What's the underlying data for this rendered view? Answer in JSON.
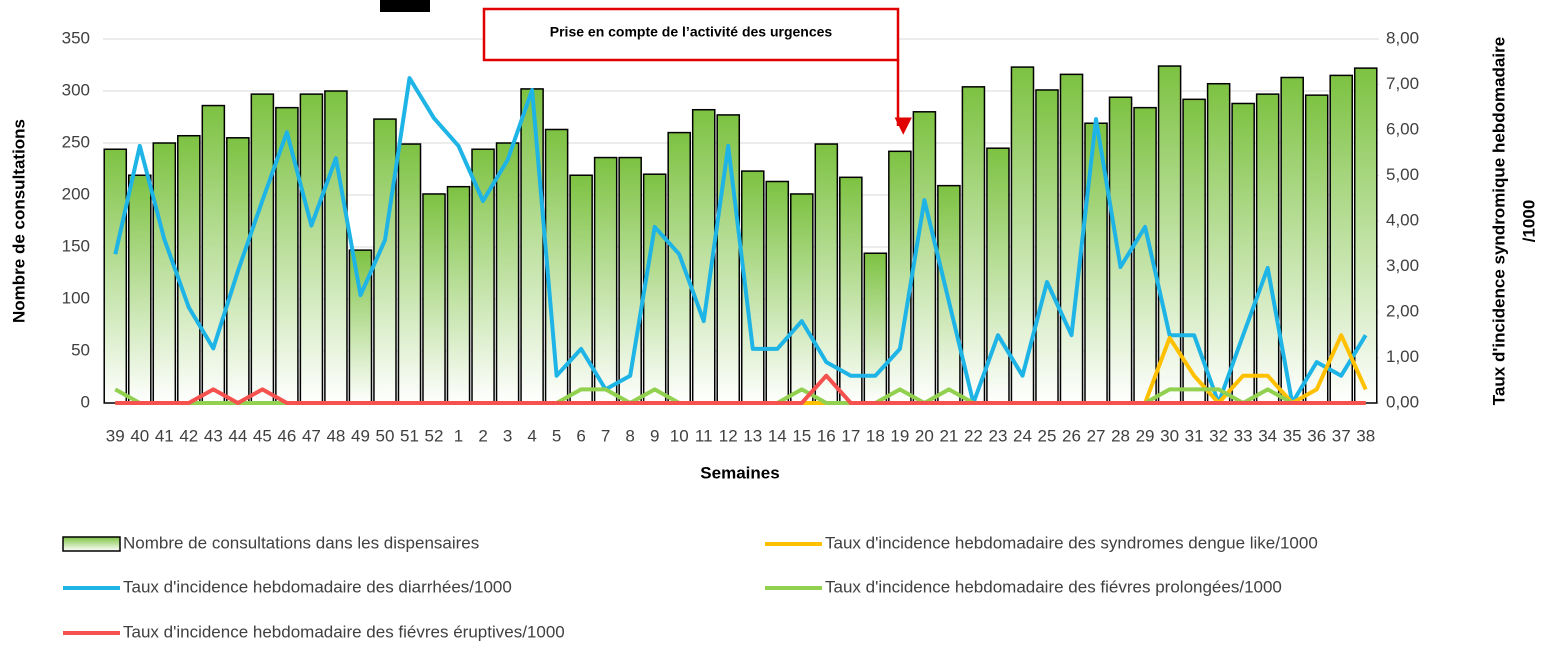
{
  "chart_data": {
    "type": "bar",
    "annotation": "Prise en compte de l’activité des urgences",
    "xlabel": "Semaines",
    "ylabel": "Nombre de consultations",
    "y2label": [
      "Taux d'incidence syndromique hebdomadaire",
      "/1000"
    ],
    "categories": [
      "39",
      "40",
      "41",
      "42",
      "43",
      "44",
      "45",
      "46",
      "47",
      "48",
      "49",
      "50",
      "51",
      "52",
      "1",
      "2",
      "3",
      "4",
      "5",
      "6",
      "7",
      "8",
      "9",
      "10",
      "11",
      "12",
      "13",
      "14",
      "15",
      "16",
      "17",
      "18",
      "19",
      "20",
      "21",
      "22",
      "23",
      "24",
      "25",
      "26",
      "27",
      "28",
      "29",
      "30",
      "31",
      "32",
      "33",
      "34",
      "35",
      "36",
      "37",
      "38"
    ],
    "ylim": [
      0,
      350
    ],
    "yticks": [
      0,
      50,
      100,
      150,
      200,
      250,
      300,
      350
    ],
    "y2lim": [
      0,
      8
    ],
    "y2ticks": [
      {
        "value": 0,
        "label": "0,00"
      },
      {
        "value": 1,
        "label": "1,00"
      },
      {
        "value": 2,
        "label": "2,00"
      },
      {
        "value": 3,
        "label": "3,00"
      },
      {
        "value": 4,
        "label": "4,00"
      },
      {
        "value": 5,
        "label": "5,00"
      },
      {
        "value": 6,
        "label": "6,00"
      },
      {
        "value": 7,
        "label": "7,00"
      },
      {
        "value": 8,
        "label": "8,00"
      }
    ],
    "grid": true,
    "legend": "bottom",
    "series": [
      {
        "name": "Nombre de consultations dans les dispensaires",
        "type": "bar",
        "color": "#7dc242",
        "values": [
          244,
          219,
          250,
          257,
          286,
          255,
          297,
          284,
          297,
          300,
          147,
          273,
          249,
          201,
          208,
          244,
          250,
          302,
          263,
          219,
          236,
          236,
          220,
          260,
          282,
          277,
          223,
          213,
          201,
          249,
          217,
          144,
          242,
          280,
          209,
          304,
          245,
          323,
          301,
          316,
          269,
          294,
          284,
          324,
          292,
          307,
          288,
          297,
          313,
          296,
          315,
          322
        ]
      },
      {
        "name": "Taux d'incidence hebdomadaire des syndromes dengue like/1000",
        "type": "line",
        "axis": "y2",
        "color": "#ffc000",
        "values": [
          0,
          0,
          0,
          0,
          0,
          0,
          0,
          0,
          0,
          0,
          0,
          0,
          0,
          0,
          0,
          0,
          0,
          0,
          0,
          0,
          0,
          0,
          0,
          0,
          0,
          0,
          0,
          0,
          0,
          0,
          0,
          0,
          0,
          0,
          0,
          0,
          0,
          0,
          0,
          0,
          0,
          0,
          0,
          1.43,
          0.6,
          0,
          0.6,
          0.6,
          0,
          0.3,
          1.49,
          0.3
        ]
      },
      {
        "name": "Taux d'incidence hebdomadaire des diarrhées/1000",
        "type": "line",
        "axis": "y2",
        "color": "#1fb4e6",
        "values": [
          3.27,
          5.65,
          3.6,
          2.1,
          1.2,
          2.9,
          4.45,
          5.95,
          3.9,
          5.38,
          2.37,
          3.58,
          7.14,
          6.26,
          5.65,
          4.44,
          5.34,
          6.88,
          0.6,
          1.19,
          0.3,
          0.6,
          3.87,
          3.27,
          1.8,
          5.65,
          1.19,
          1.19,
          1.8,
          0.9,
          0.6,
          0.6,
          1.19,
          4.46,
          2.23,
          0,
          1.49,
          0.6,
          2.66,
          1.49,
          6.24,
          2.99,
          3.87,
          1.49,
          1.49,
          0,
          1.49,
          2.97,
          0,
          0.9,
          0.6,
          1.49
        ]
      },
      {
        "name": "Taux d'incidence hebdomadaire des fiévres prolongées/1000",
        "type": "line",
        "axis": "y2",
        "color": "#92d050",
        "values": [
          0.3,
          0,
          0,
          0,
          0,
          0,
          0,
          0,
          0,
          0,
          0,
          0,
          0,
          0,
          0,
          0,
          0,
          0,
          0,
          0.3,
          0.3,
          0,
          0.3,
          0,
          0,
          0,
          0,
          0,
          0.3,
          0,
          0,
          0,
          0.3,
          0,
          0.3,
          0,
          0,
          0,
          0,
          0,
          0,
          0,
          0,
          0.3,
          0.3,
          0.3,
          0,
          0.3,
          0,
          0,
          0,
          0
        ]
      },
      {
        "name": "Taux d'incidence hebdomadaire des fiévres éruptives/1000",
        "type": "line",
        "axis": "y2",
        "color": "#f4514f",
        "values": [
          0,
          0,
          0,
          0,
          0.3,
          0,
          0.3,
          0,
          0,
          0,
          0,
          0,
          0,
          0,
          0,
          0,
          0,
          0,
          0,
          0,
          0,
          0,
          0,
          0,
          0,
          0,
          0,
          0,
          0,
          0.6,
          0,
          0,
          0,
          0,
          0,
          0,
          0,
          0,
          0,
          0,
          0,
          0,
          0,
          0,
          0,
          0,
          0,
          0,
          0,
          0,
          0,
          0
        ]
      }
    ]
  }
}
